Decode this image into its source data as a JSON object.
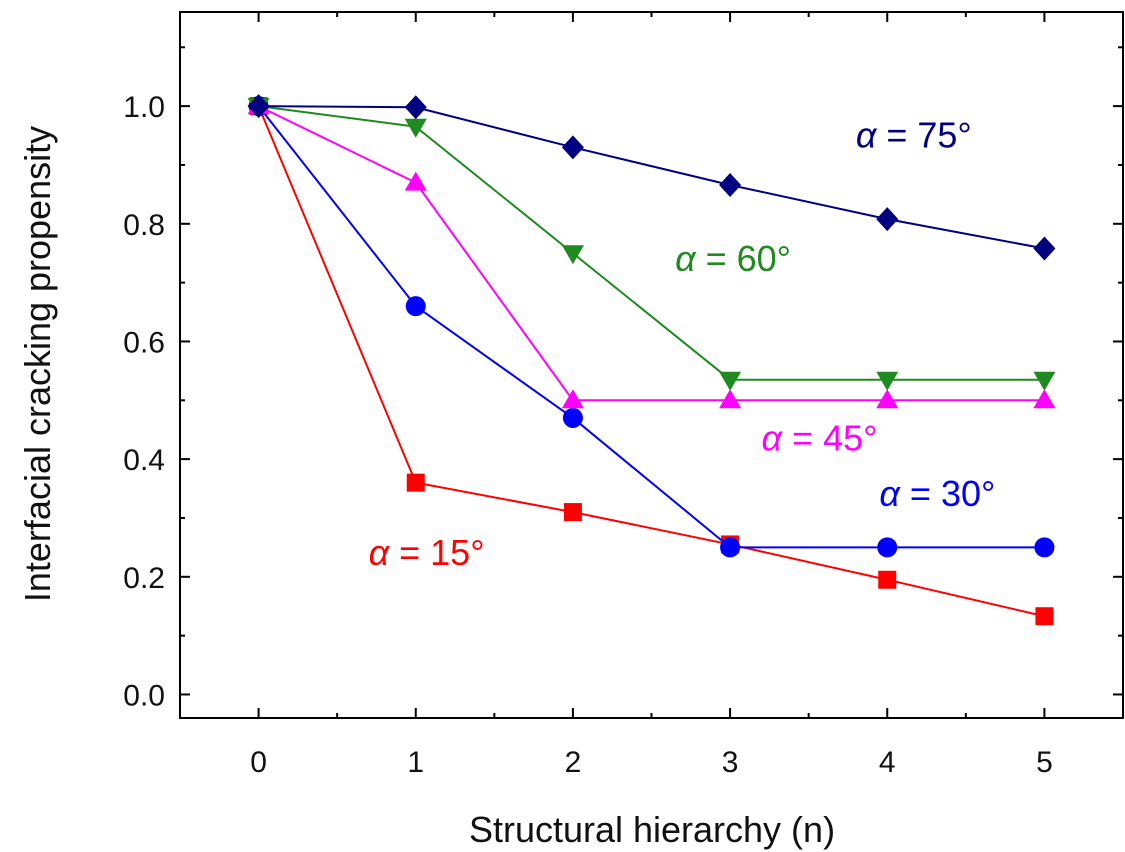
{
  "chart_data": {
    "type": "line",
    "xlabel": "Structural hierarchy (n)",
    "ylabel": "Interfacial cracking propensity",
    "x": [
      0,
      1,
      2,
      3,
      4,
      5
    ],
    "xlim": [
      -0.5,
      5.5
    ],
    "ylim": [
      -0.04,
      1.16
    ],
    "xticks": [
      "0",
      "1",
      "2",
      "3",
      "4",
      "5"
    ],
    "yticks": [
      "0.0",
      "0.2",
      "0.4",
      "0.6",
      "0.8",
      "1.0"
    ],
    "grid": false,
    "legend": "none",
    "series": [
      {
        "name": "α = 15°",
        "color": "#ff0000",
        "marker": "square",
        "values": [
          1.0,
          0.36,
          0.31,
          0.255,
          0.195,
          0.133
        ],
        "label_pos": {
          "x": 0.7,
          "y": 0.22
        }
      },
      {
        "name": "α = 30°",
        "color": "#0000ff",
        "marker": "circle",
        "values": [
          1.0,
          0.66,
          0.47,
          0.25,
          0.25,
          0.25
        ],
        "label_pos": {
          "x": 3.95,
          "y": 0.32
        }
      },
      {
        "name": "α = 45°",
        "color": "#ff00ff",
        "marker": "triangle-up",
        "values": [
          1.0,
          0.87,
          0.5,
          0.5,
          0.5,
          0.5
        ],
        "label_pos": {
          "x": 3.2,
          "y": 0.415
        }
      },
      {
        "name": "α = 60°",
        "color": "#1f8a1f",
        "marker": "triangle-down",
        "values": [
          1.0,
          0.965,
          0.75,
          0.535,
          0.535,
          0.535
        ],
        "label_pos": {
          "x": 2.65,
          "y": 0.72
        }
      },
      {
        "name": "α = 75°",
        "color": "#000080",
        "marker": "diamond",
        "values": [
          1.0,
          0.998,
          0.93,
          0.866,
          0.808,
          0.758
        ],
        "label_pos": {
          "x": 3.8,
          "y": 0.93
        }
      }
    ]
  }
}
